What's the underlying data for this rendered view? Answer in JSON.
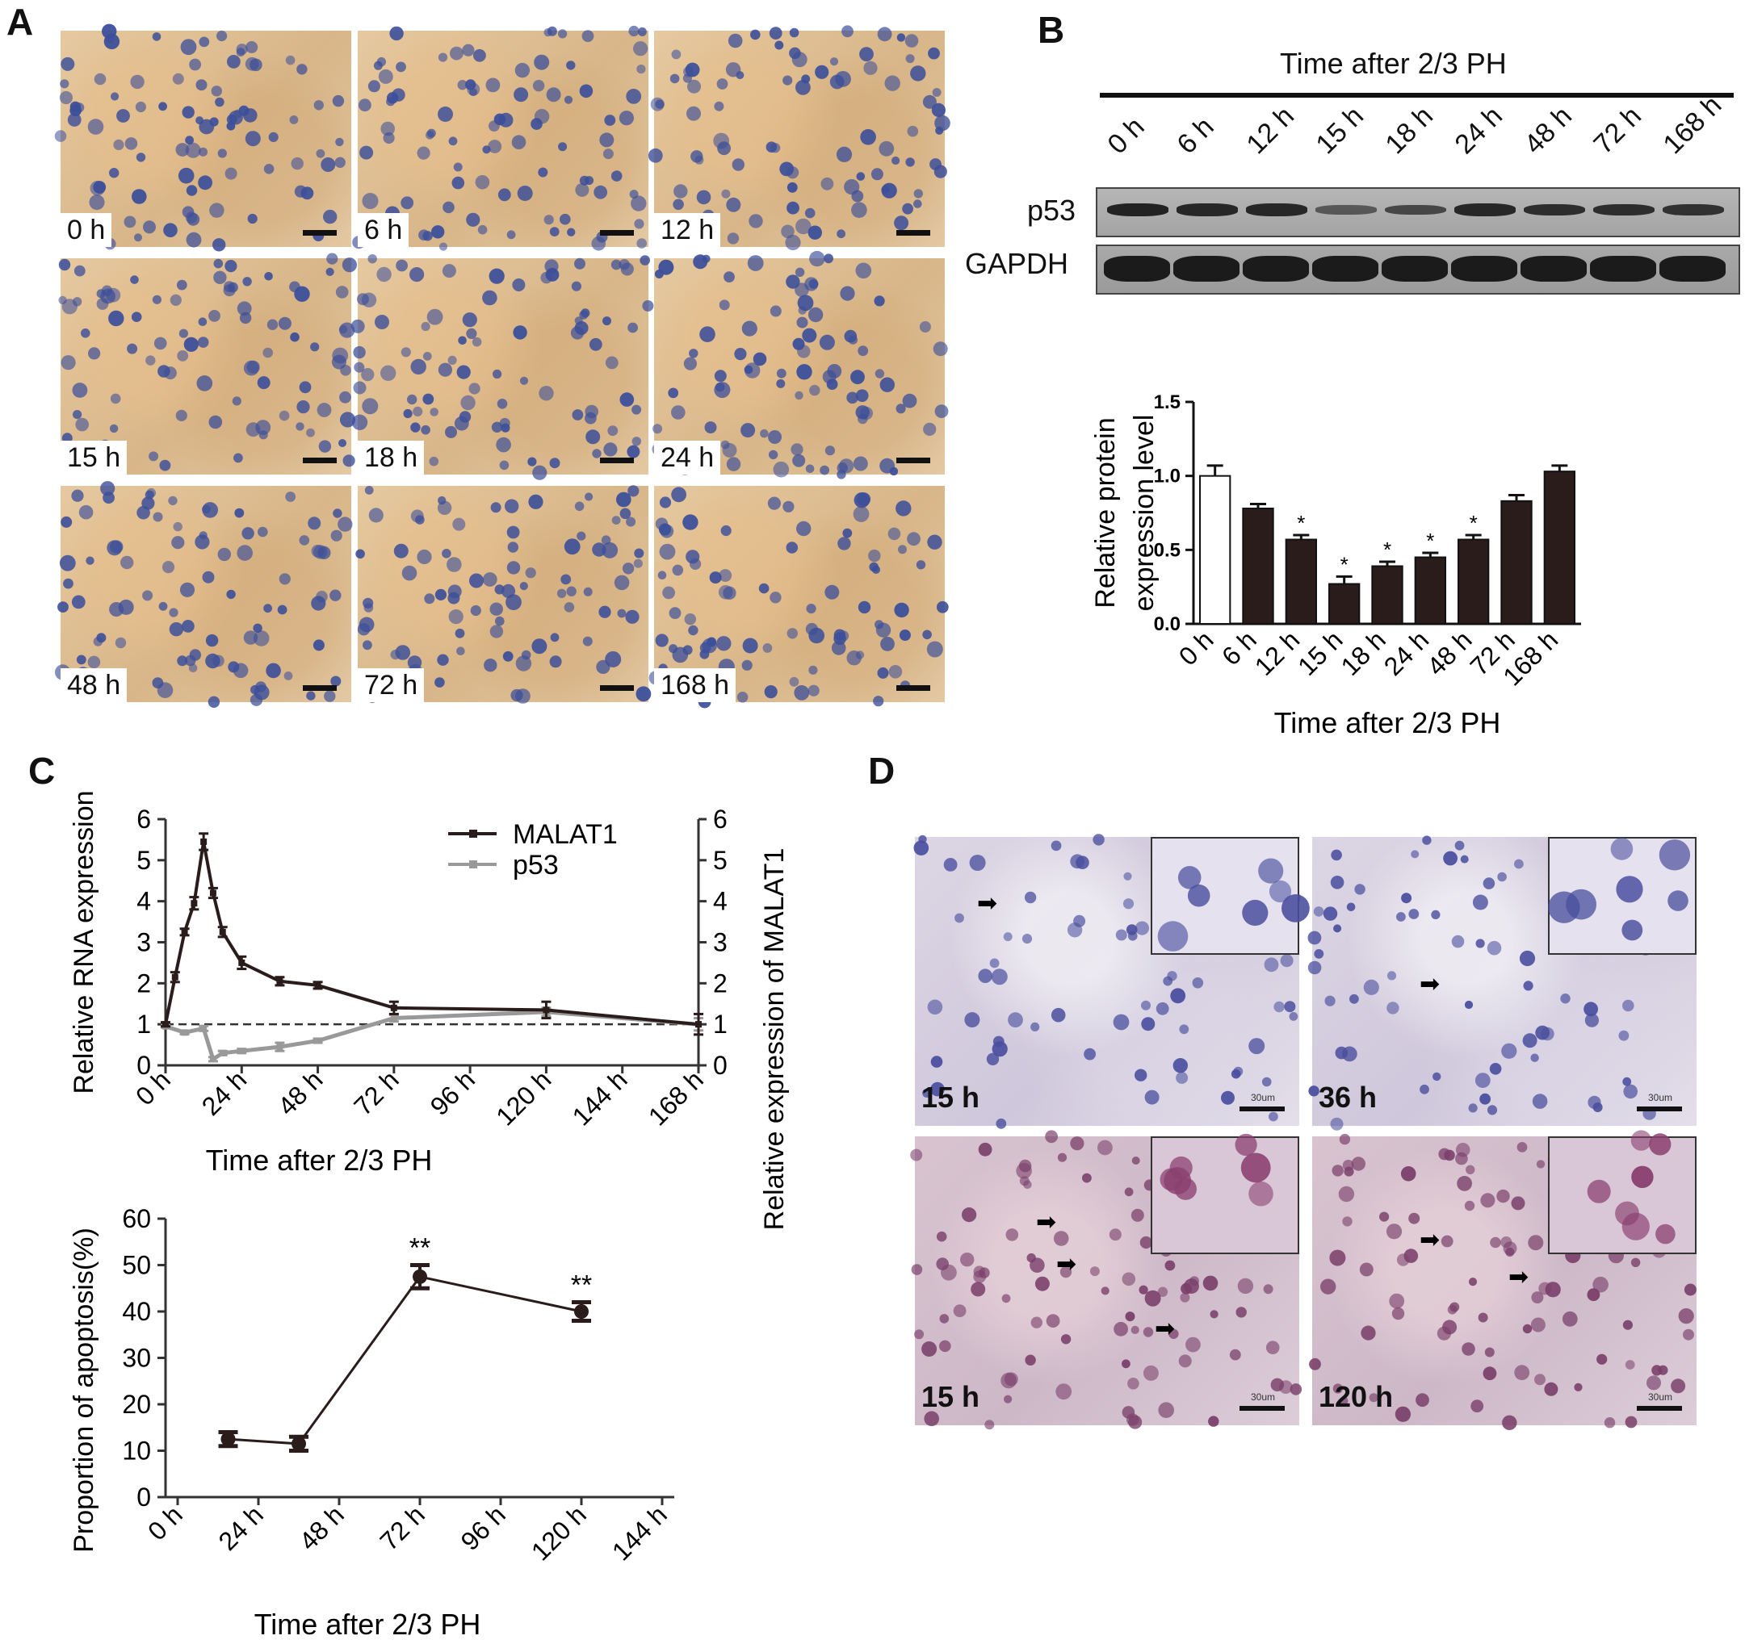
{
  "panels": {
    "A": {
      "letter": "A",
      "tiles": [
        "0 h",
        "6 h",
        "12 h",
        "15 h",
        "18 h",
        "24 h",
        "48 h",
        "72 h",
        "168 h"
      ]
    },
    "B": {
      "letter": "B",
      "blot_header": "Time after 2/3 PH",
      "lanes": [
        "0 h",
        "6 h",
        "12 h",
        "15 h",
        "18 h",
        "24 h",
        "48 h",
        "72 h",
        "168 h"
      ],
      "rows": [
        "p53",
        "GAPDH"
      ],
      "p53_band_intensity": [
        0.95,
        0.9,
        0.9,
        0.45,
        0.6,
        0.9,
        0.85,
        0.85,
        0.8
      ]
    },
    "C": {
      "letter": "C"
    },
    "D": {
      "letter": "D",
      "tiles": [
        "15 h",
        "36 h",
        "15 h",
        "120 h"
      ],
      "scale_text": "30um"
    }
  },
  "chart_data": [
    {
      "id": "B-bar",
      "type": "bar",
      "categories": [
        "0 h",
        "6 h",
        "12 h",
        "15 h",
        "18 h",
        "24 h",
        "48 h",
        "72 h",
        "168 h"
      ],
      "values": [
        1.0,
        0.78,
        0.57,
        0.27,
        0.39,
        0.45,
        0.57,
        0.83,
        1.03
      ],
      "errors": [
        0.07,
        0.03,
        0.03,
        0.05,
        0.03,
        0.03,
        0.03,
        0.04,
        0.04
      ],
      "significance": [
        "",
        "",
        "*",
        "*",
        "*",
        "*",
        "*",
        "",
        ""
      ],
      "bar_colors": [
        "#ffffff",
        "#2b1c1c",
        "#2b1c1c",
        "#2b1c1c",
        "#2b1c1c",
        "#2b1c1c",
        "#2b1c1c",
        "#2b1c1c",
        "#2b1c1c"
      ],
      "ylabel_lines": [
        "Relative protein",
        "expression level"
      ],
      "xlabel": "Time after 2/3 PH",
      "ylim": [
        0,
        1.5
      ],
      "yticks": [
        "0.0",
        "0.5",
        "1.0",
        "1.5"
      ]
    },
    {
      "id": "C-line",
      "type": "line",
      "series": [
        {
          "name": "MALAT1",
          "color": "#2b1c1c",
          "x": [
            0,
            3,
            6,
            9,
            12,
            15,
            18,
            24,
            36,
            48,
            72,
            120,
            168
          ],
          "y": [
            1.0,
            2.15,
            3.25,
            3.95,
            5.45,
            4.2,
            3.25,
            2.5,
            2.05,
            1.95,
            1.4,
            1.35,
            1.0
          ],
          "err": [
            0.05,
            0.12,
            0.08,
            0.15,
            0.2,
            0.12,
            0.12,
            0.15,
            0.1,
            0.08,
            0.15,
            0.2,
            0.25
          ]
        },
        {
          "name": "p53",
          "color": "#999999",
          "x": [
            0,
            6,
            12,
            15,
            18,
            24,
            36,
            48,
            72,
            120,
            168
          ],
          "y": [
            0.95,
            0.8,
            0.9,
            0.15,
            0.3,
            0.35,
            0.45,
            0.6,
            1.15,
            1.3,
            1.0
          ],
          "err": [
            0.03,
            0.04,
            0.06,
            0.05,
            0.05,
            0.05,
            0.1,
            0.05,
            0.08,
            0.1,
            0.15
          ]
        }
      ],
      "reference_line": 1,
      "ylabel_left": "Relative RNA expression",
      "ylabel_right": "Relative expression of  MALAT1",
      "xlabel": "Time after 2/3 PH",
      "xticks": [
        "0 h",
        "24 h",
        "48 h",
        "72 h",
        "96 h",
        "120 h",
        "144 h",
        "168 h"
      ],
      "ylim": [
        0,
        6
      ],
      "yticks": [
        "0",
        "1",
        "2",
        "3",
        "4",
        "5",
        "6"
      ],
      "legend_position": "top-right"
    },
    {
      "id": "C-apoptosis",
      "type": "line",
      "x": [
        15,
        36,
        72,
        120
      ],
      "y": [
        12.5,
        11.5,
        47.5,
        40.0
      ],
      "errors": [
        1.5,
        1.5,
        2.5,
        2.0
      ],
      "significance": [
        "",
        "",
        "**",
        "**"
      ],
      "ylabel": "Proportion of apoptosis(%)",
      "xlabel": "Time after 2/3 PH",
      "xticks": [
        "0 h",
        "24 h",
        "48 h",
        "72 h",
        "96 h",
        "120 h",
        "144 h"
      ],
      "ylim": [
        0,
        60
      ],
      "yticks": [
        "0",
        "10",
        "20",
        "30",
        "40",
        "50",
        "60"
      ]
    }
  ]
}
